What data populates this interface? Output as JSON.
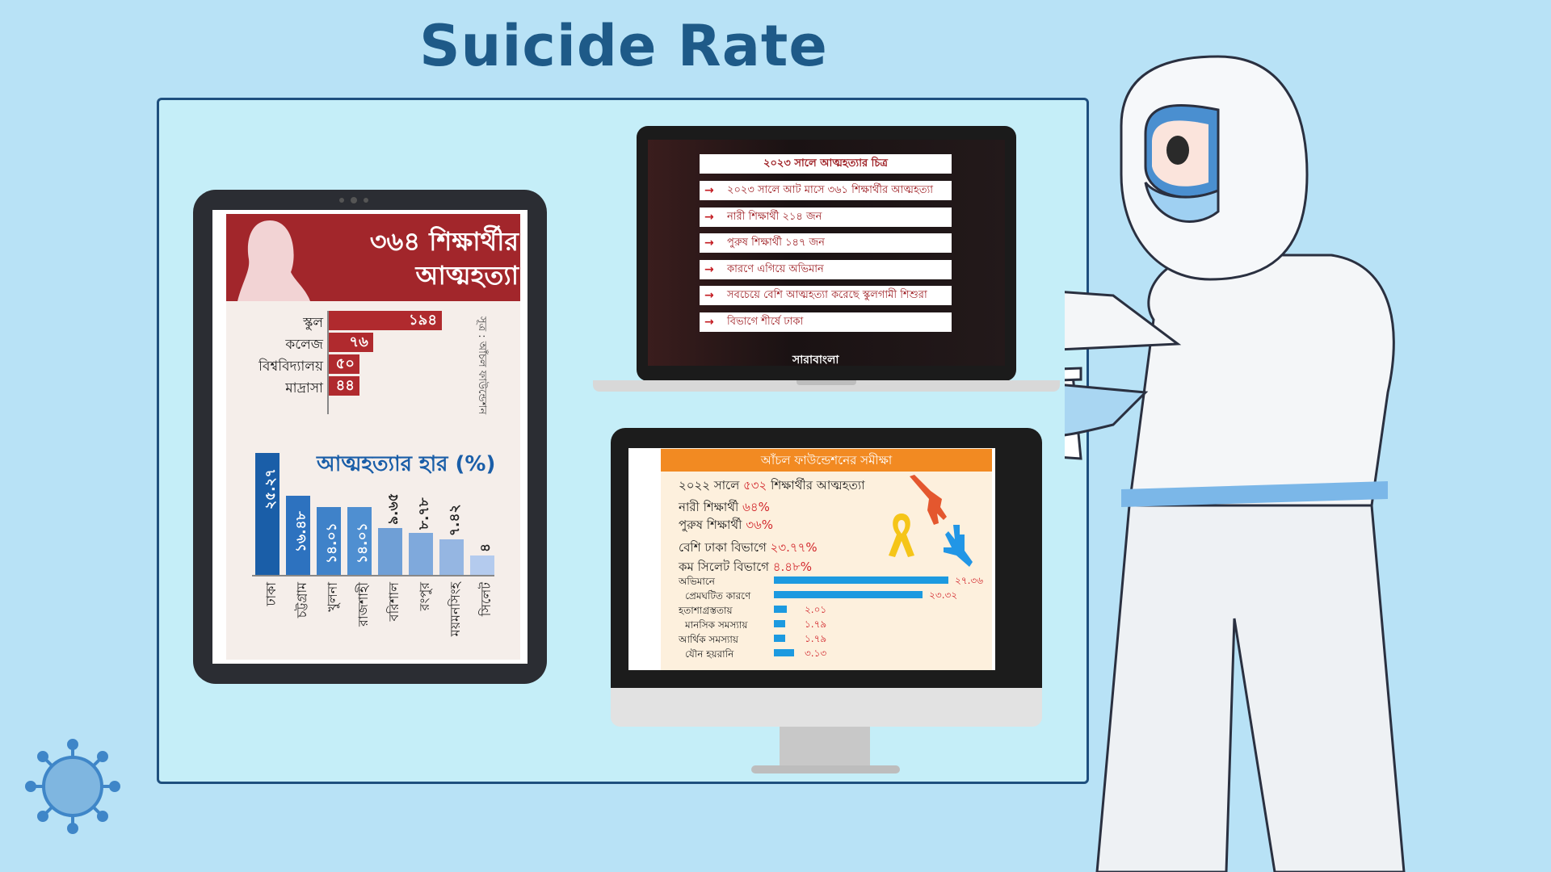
{
  "page": {
    "title": "Suicide Rate"
  },
  "tablet": {
    "headline": "৩৬৪ শিক্ষার্থীর আত্মহত্যা",
    "source": "সূত্র : আঁচল ফাউন্ডেশন",
    "categories": [
      {
        "label": "স্কুল",
        "value": "১৯৪"
      },
      {
        "label": "কলেজ",
        "value": "৭৬"
      },
      {
        "label": "বিশ্ববিদ্যালয়",
        "value": "৫০"
      },
      {
        "label": "মাদ্রাসা",
        "value": "৪৪"
      }
    ],
    "rate_title": "আত্মহত্যার হার (%)",
    "rates": [
      {
        "division": "ঢাকা",
        "value": "২৫.২৭"
      },
      {
        "division": "চট্টগ্রাম",
        "value": "১৬.৪৮"
      },
      {
        "division": "খুলনা",
        "value": "১৪.০১"
      },
      {
        "division": "রাজশাহী",
        "value": "১৪.০১"
      },
      {
        "division": "বরিশাল",
        "value": "৯.৬৫"
      },
      {
        "division": "রংপুর",
        "value": "৮.৭৮"
      },
      {
        "division": "ময়মনসিংহ",
        "value": "৭.৪২"
      },
      {
        "division": "সিলেট",
        "value": "৪"
      }
    ]
  },
  "laptop": {
    "slide_title": "২০২৩ সালে আত্মহত্যার চিত্র",
    "rows": [
      "২০২৩ সালে আট মাসে ৩৬১ শিক্ষার্থীর আত্মহত্যা",
      "নারী শিক্ষার্থী ২১৪ জন",
      "পুরুষ শিক্ষার্থী ১৪৭ জন",
      "কারণে এগিয়ে অভিমান",
      "সবচেয়ে বেশি আত্মহত্যা করেছে স্কুলগামী শিশুরা",
      "বিভাগে শীর্ষে ঢাকা"
    ],
    "brand": "সারাবাংলা"
  },
  "monitor": {
    "header": "আঁচল ফাউন্ডেশনের সমীক্ষা",
    "line1_pre": "২০২২ সালে",
    "line1_num": "৫৩২",
    "line1_post": "শিক্ষার্থীর আত্মহত্যা",
    "female_label": "নারী শিক্ষার্থী",
    "female_pct": "৬৪%",
    "male_label": "পুরুষ শিক্ষার্থী",
    "male_pct": "৩৬%",
    "most_label": "বেশি ঢাকা বিভাগে",
    "most_pct": "২৩.৭৭%",
    "least_label": "কম সিলেট বিভাগে",
    "least_pct": "৪.৪৮%",
    "reasons": [
      {
        "label": "অভিমানে",
        "value": "২৭.৩৬",
        "num": 27.36
      },
      {
        "label": "প্রেমঘটিত কারণে",
        "value": "২৩.৩২",
        "num": 23.32
      },
      {
        "label": "হতাশাগ্রস্ততায়",
        "value": "২.০১",
        "num": 2.01
      },
      {
        "label": "মানসিক সমস্যায়",
        "value": "১.৭৯",
        "num": 1.79
      },
      {
        "label": "আর্থিক সমস্যায়",
        "value": "১.৭৯",
        "num": 1.79
      },
      {
        "label": "যৌন হয়রানি",
        "value": "৩.১৩",
        "num": 3.13
      }
    ]
  },
  "colors": {
    "title": "#1e5a88",
    "tablet_red": "#a2262b",
    "rate_blue": "#1a5ea8",
    "orange": "#f28a22",
    "bar_blue": "#1c9ae0"
  }
}
